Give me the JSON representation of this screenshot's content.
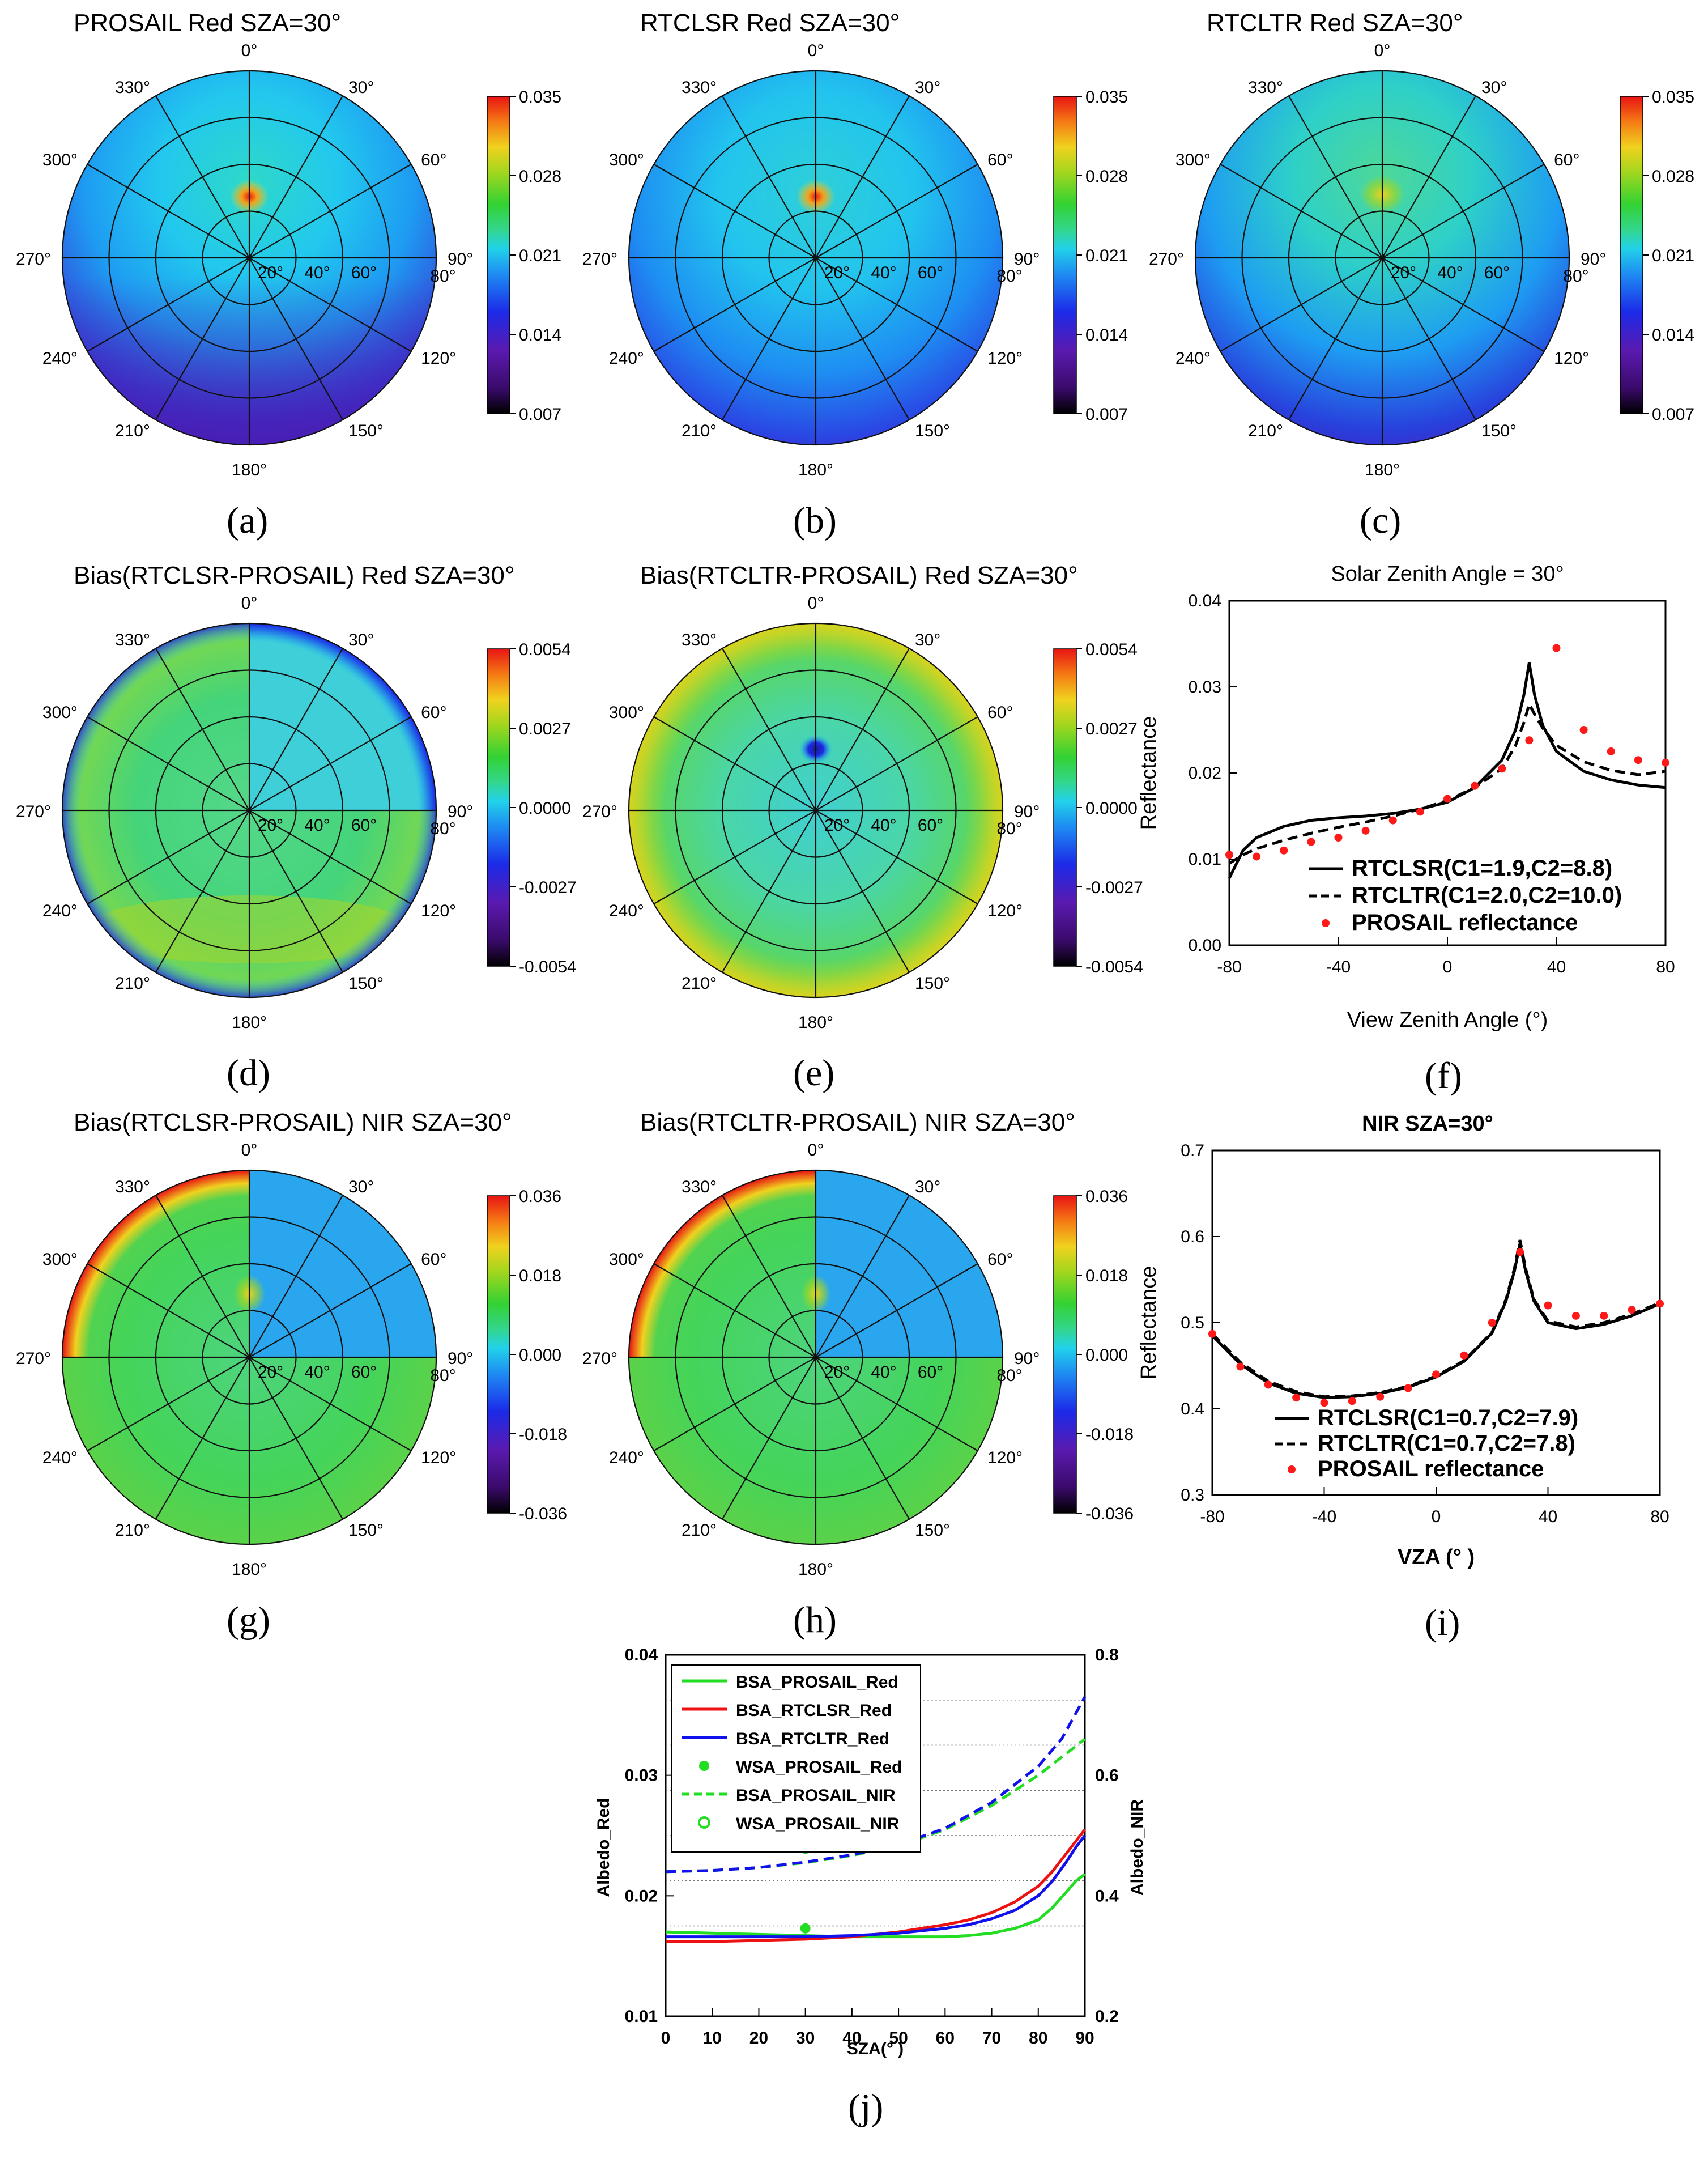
{
  "figure": {
    "colors": {
      "jet": [
        "#000000",
        "#3a0a6a",
        "#5a1ab0",
        "#1c2ae8",
        "#1e8cf2",
        "#22d2ea",
        "#33d68c",
        "#33d233",
        "#a2d61e",
        "#f0d21e",
        "#f57a14",
        "#e81414"
      ],
      "red_points": "#ff1a1a",
      "green": "#22dd22",
      "red": "#ee1111",
      "blue": "#1111ee"
    },
    "polar_common": {
      "azimuth_labels": [
        "0°",
        "30°",
        "60°",
        "90°",
        "120°",
        "150°",
        "180°",
        "210°",
        "240°",
        "270°",
        "300°",
        "330°"
      ],
      "ring_labels": [
        "20°",
        "40°",
        "60°",
        "80°"
      ]
    },
    "panels": [
      {
        "id": "a",
        "caption": "(a)",
        "title": "PROSAIL    Red   SZA=30°",
        "colorbar": [
          "0.035",
          "0.028",
          "0.021",
          "0.014",
          "0.007"
        ]
      },
      {
        "id": "b",
        "caption": "(b)",
        "title": "RTCLSR    Red   SZA=30°",
        "colorbar": [
          "0.035",
          "0.028",
          "0.021",
          "0.014",
          "0.007"
        ]
      },
      {
        "id": "c",
        "caption": "(c)",
        "title": "RTCLTR    Red   SZA=30°",
        "colorbar": [
          "0.035",
          "0.028",
          "0.021",
          "0.014",
          "0.007"
        ]
      },
      {
        "id": "d",
        "caption": "(d)",
        "title": "Bias(RTCLSR-PROSAIL)     Red   SZA=30°",
        "colorbar": [
          "0.0054",
          "0.0027",
          "0.0000",
          "-0.0027",
          "-0.0054"
        ]
      },
      {
        "id": "e",
        "caption": "(e)",
        "title": "Bias(RTCLTR-PROSAIL)     Red   SZA=30°",
        "colorbar": [
          "0.0054",
          "0.0027",
          "0.0000",
          "-0.0027",
          "-0.0054"
        ]
      },
      {
        "id": "g",
        "caption": "(g)",
        "title": "Bias(RTCLSR-PROSAIL)     NIR   SZA=30°",
        "colorbar": [
          "0.036",
          "0.018",
          "0.000",
          "-0.018",
          "-0.036"
        ]
      },
      {
        "id": "h",
        "caption": "(h)",
        "title": "Bias(RTCLTR-PROSAIL)     NIR   SZA=30°",
        "colorbar": [
          "0.036",
          "0.018",
          "0.000",
          "-0.018",
          "-0.036"
        ]
      }
    ],
    "caption_f": "(f)",
    "caption_i": "(i)",
    "caption_j": "(j)"
  },
  "chart_data": [
    {
      "id": "f",
      "type": "line",
      "title": "Solar Zenith Angle = 30°",
      "xlabel": "View Zenith Angle (°)",
      "ylabel": "Reflectance",
      "xlim": [
        -80,
        80
      ],
      "ylim": [
        0,
        0.04
      ],
      "xticks": [
        "-80",
        "-40",
        "0",
        "40",
        "80"
      ],
      "yticks": [
        "0.00",
        "0.01",
        "0.02",
        "0.03",
        "0.04"
      ],
      "series": [
        {
          "name": "RTCLSR(C1=1.9,C2=8.8)",
          "style": "solid",
          "x": [
            -80,
            -75,
            -70,
            -60,
            -50,
            -40,
            -30,
            -20,
            -10,
            0,
            10,
            20,
            25,
            28,
            30,
            32,
            35,
            40,
            50,
            60,
            70,
            80
          ],
          "y": [
            0.0078,
            0.011,
            0.0125,
            0.0138,
            0.0145,
            0.0148,
            0.015,
            0.0153,
            0.0158,
            0.0166,
            0.0183,
            0.0215,
            0.025,
            0.029,
            0.0328,
            0.029,
            0.0255,
            0.0225,
            0.0202,
            0.0192,
            0.0186,
            0.0183
          ]
        },
        {
          "name": "RTCLTR(C1=2.0,C2=10.0)",
          "style": "dashed",
          "x": [
            -80,
            -75,
            -70,
            -60,
            -50,
            -40,
            -30,
            -20,
            -10,
            0,
            10,
            20,
            25,
            28,
            30,
            32,
            35,
            40,
            50,
            60,
            70,
            80
          ],
          "y": [
            0.0095,
            0.0105,
            0.0112,
            0.0122,
            0.013,
            0.0137,
            0.0143,
            0.015,
            0.0158,
            0.0168,
            0.0183,
            0.0205,
            0.0232,
            0.0258,
            0.028,
            0.0268,
            0.0252,
            0.0232,
            0.0213,
            0.0203,
            0.0198,
            0.0202
          ]
        },
        {
          "name": "PROSAIL reflectance",
          "style": "points",
          "x": [
            -80,
            -70,
            -60,
            -50,
            -40,
            -30,
            -20,
            -10,
            0,
            10,
            20,
            30,
            40,
            50,
            60,
            70,
            80
          ],
          "y": [
            0.0105,
            0.0103,
            0.011,
            0.012,
            0.0125,
            0.0133,
            0.0145,
            0.0155,
            0.017,
            0.0185,
            0.0205,
            0.0238,
            0.0345,
            0.025,
            0.0225,
            0.0215,
            0.0212
          ]
        }
      ]
    },
    {
      "id": "i",
      "type": "line",
      "title": "NIR   SZA=30°",
      "xlabel": "VZA (°  )",
      "ylabel": "Reflectance",
      "xlim": [
        -80,
        80
      ],
      "ylim": [
        0.3,
        0.7
      ],
      "xticks": [
        "-80",
        "-40",
        "0",
        "40",
        "80"
      ],
      "yticks": [
        "0.3",
        "0.4",
        "0.5",
        "0.6",
        "0.7"
      ],
      "series": [
        {
          "name": "RTCLSR(C1=0.7,C2=7.9)",
          "style": "solid",
          "x": [
            -80,
            -70,
            -60,
            -50,
            -40,
            -30,
            -20,
            -10,
            0,
            10,
            20,
            25,
            28,
            30,
            32,
            35,
            40,
            50,
            60,
            70,
            80
          ],
          "y": [
            0.485,
            0.452,
            0.43,
            0.418,
            0.413,
            0.414,
            0.418,
            0.425,
            0.437,
            0.455,
            0.488,
            0.525,
            0.56,
            0.592,
            0.56,
            0.525,
            0.5,
            0.493,
            0.498,
            0.508,
            0.522
          ]
        },
        {
          "name": "RTCLTR(C1=0.7,C2=7.8)",
          "style": "dashed",
          "x": [
            -80,
            -70,
            -60,
            -50,
            -40,
            -30,
            -20,
            -10,
            0,
            10,
            20,
            25,
            28,
            30,
            32,
            35,
            40,
            50,
            60,
            70,
            80
          ],
          "y": [
            0.487,
            0.454,
            0.432,
            0.42,
            0.414,
            0.415,
            0.419,
            0.426,
            0.438,
            0.456,
            0.489,
            0.527,
            0.563,
            0.596,
            0.563,
            0.527,
            0.502,
            0.495,
            0.5,
            0.51,
            0.523
          ]
        },
        {
          "name": "PROSAIL reflectance",
          "style": "points",
          "x": [
            -80,
            -70,
            -60,
            -50,
            -40,
            -30,
            -20,
            -10,
            0,
            10,
            20,
            30,
            40,
            50,
            60,
            70,
            80
          ],
          "y": [
            0.487,
            0.449,
            0.428,
            0.413,
            0.407,
            0.409,
            0.414,
            0.424,
            0.44,
            0.462,
            0.5,
            0.582,
            0.52,
            0.508,
            0.508,
            0.515,
            0.522
          ]
        }
      ]
    },
    {
      "id": "j",
      "type": "line",
      "xlabel": "SZA(°  )",
      "ylabel": "Albedo_Red",
      "y2label": "Albedo_NIR",
      "xlim": [
        0,
        90
      ],
      "ylim": [
        0.01,
        0.04
      ],
      "y2lim": [
        0.2,
        0.8
      ],
      "xticks": [
        "0",
        "10",
        "20",
        "30",
        "40",
        "50",
        "60",
        "70",
        "80",
        "90"
      ],
      "yticks": [
        "0.01",
        "0.02",
        "0.03",
        "0.04"
      ],
      "y2ticks": [
        "0.2",
        "0.4",
        "0.6",
        "0.8"
      ],
      "series": [
        {
          "name": "BSA_PROSAIL_Red",
          "axis": "left",
          "style": "solid",
          "color": "green",
          "x": [
            0,
            10,
            20,
            30,
            40,
            50,
            60,
            65,
            70,
            75,
            80,
            83,
            86,
            88,
            90
          ],
          "y": [
            0.017,
            0.0169,
            0.0168,
            0.0167,
            0.0166,
            0.0166,
            0.0166,
            0.0167,
            0.0169,
            0.0173,
            0.018,
            0.019,
            0.0203,
            0.0212,
            0.0218
          ]
        },
        {
          "name": "BSA_RTCLSR_Red",
          "axis": "left",
          "style": "solid",
          "color": "red",
          "x": [
            0,
            10,
            20,
            30,
            40,
            50,
            60,
            65,
            70,
            75,
            80,
            83,
            86,
            88,
            90
          ],
          "y": [
            0.0162,
            0.0162,
            0.0163,
            0.0164,
            0.0166,
            0.017,
            0.0176,
            0.018,
            0.0186,
            0.0195,
            0.0208,
            0.022,
            0.0235,
            0.0245,
            0.0255
          ]
        },
        {
          "name": "BSA_RTCLTR_Red",
          "axis": "left",
          "style": "solid",
          "color": "blue",
          "x": [
            0,
            10,
            20,
            30,
            40,
            50,
            60,
            65,
            70,
            75,
            80,
            83,
            86,
            88,
            90
          ],
          "y": [
            0.0166,
            0.0166,
            0.0166,
            0.0166,
            0.0167,
            0.0169,
            0.0173,
            0.0176,
            0.0181,
            0.0188,
            0.02,
            0.0212,
            0.0228,
            0.024,
            0.025
          ]
        },
        {
          "name": "WSA_PROSAIL_Red",
          "axis": "left",
          "style": "filled-points",
          "color": "green",
          "x": [
            30
          ],
          "y": [
            0.0173
          ]
        },
        {
          "name": "BSA_PROSAIL_NIR",
          "axis": "right",
          "style": "dashed",
          "color": "green",
          "x": [
            0,
            10,
            20,
            30,
            40,
            50,
            60,
            70,
            80,
            85,
            90
          ],
          "y": [
            0.44,
            0.442,
            0.447,
            0.455,
            0.467,
            0.483,
            0.51,
            0.55,
            0.6,
            0.63,
            0.66
          ]
        },
        {
          "name": "BSA_RTCLTR_NIR",
          "axis": "right",
          "style": "dashed",
          "color": "blue",
          "legend": false,
          "x": [
            0,
            10,
            20,
            30,
            40,
            50,
            60,
            70,
            80,
            85,
            90
          ],
          "y": [
            0.44,
            0.442,
            0.447,
            0.456,
            0.468,
            0.485,
            0.512,
            0.555,
            0.615,
            0.66,
            0.73
          ]
        },
        {
          "name": "WSA_PROSAIL_NIR",
          "axis": "right",
          "style": "open-points",
          "color": "green",
          "x": [
            30
          ],
          "y": [
            0.48
          ]
        }
      ]
    }
  ]
}
